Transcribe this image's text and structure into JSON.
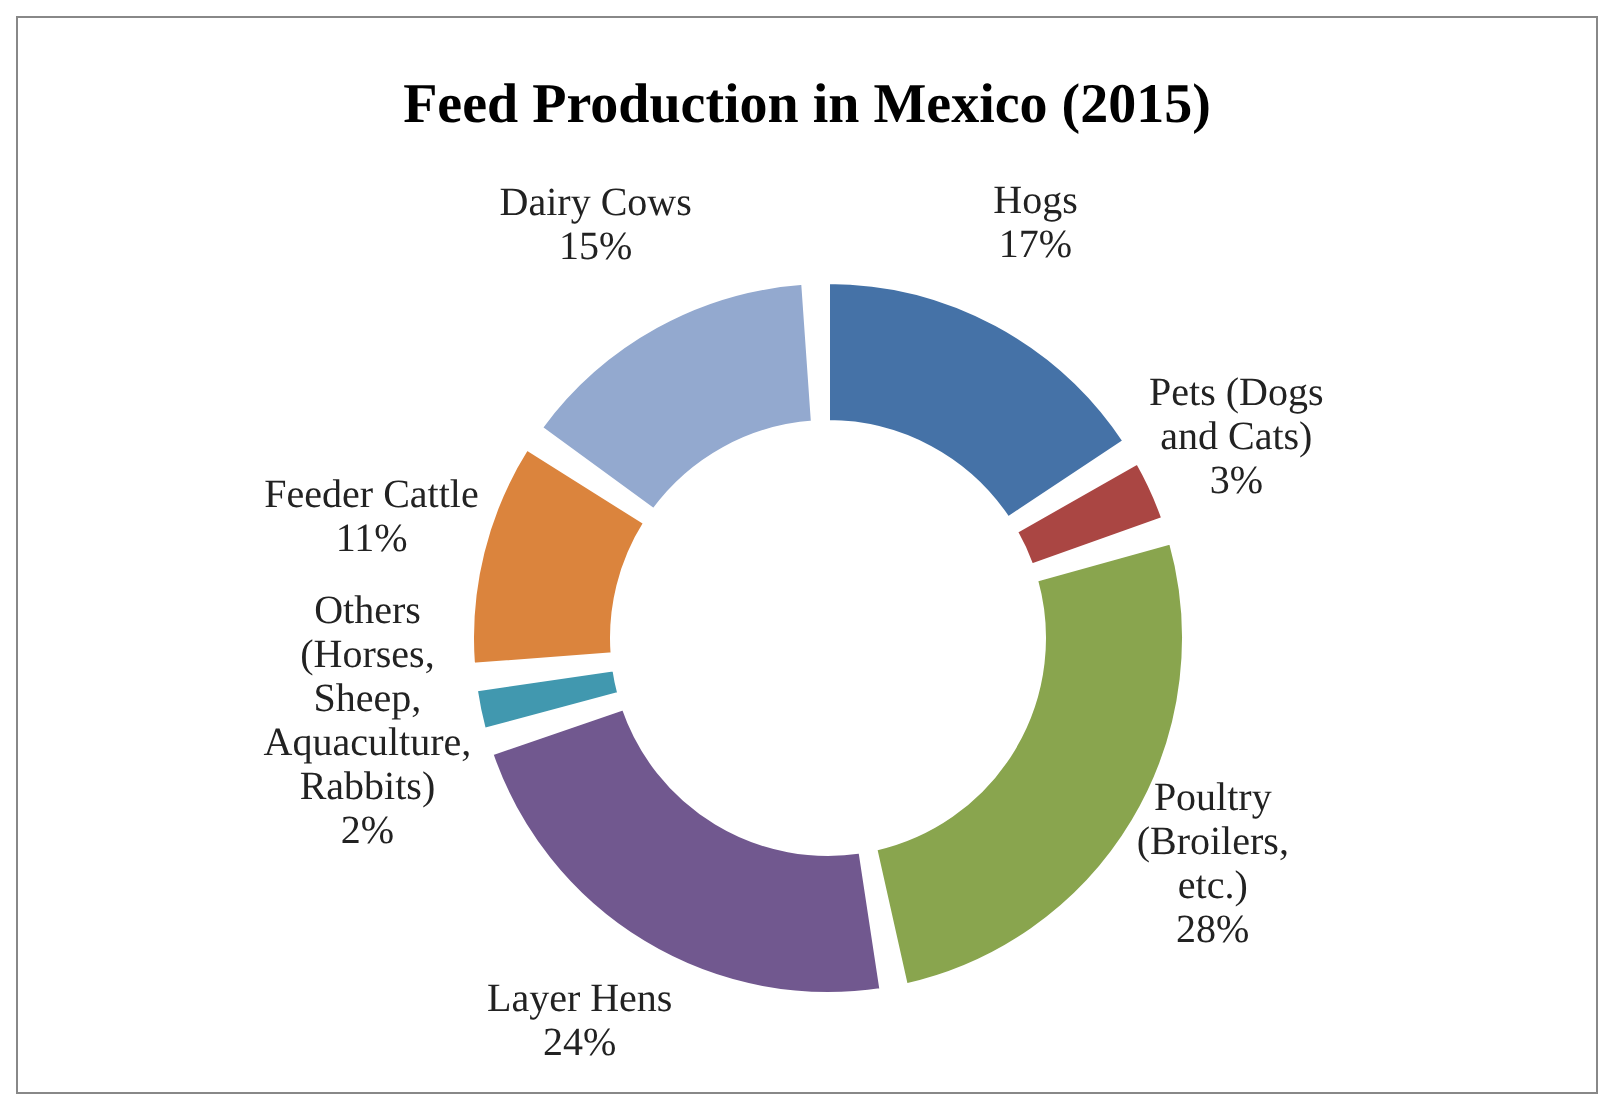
{
  "chart_data": {
    "type": "donut",
    "title": "Feed Production in Mexico (2015)",
    "categories": [
      "Hogs",
      "Pets (Dogs and Cats)",
      "Poultry (Broilers, etc.)",
      "Layer Hens",
      "Others (Horses, Sheep, Aquaculture, Rabbits)",
      "Feeder Cattle",
      "Dairy Cows"
    ],
    "values": [
      17,
      3,
      28,
      24,
      2,
      11,
      15
    ],
    "value_labels": [
      "17%",
      "3%",
      "28%",
      "24%",
      "2%",
      "11%",
      "15%"
    ],
    "colors": [
      "#4572a7",
      "#aa4643",
      "#89a54e",
      "#71588f",
      "#4198af",
      "#db843d",
      "#93a9cf"
    ]
  }
}
